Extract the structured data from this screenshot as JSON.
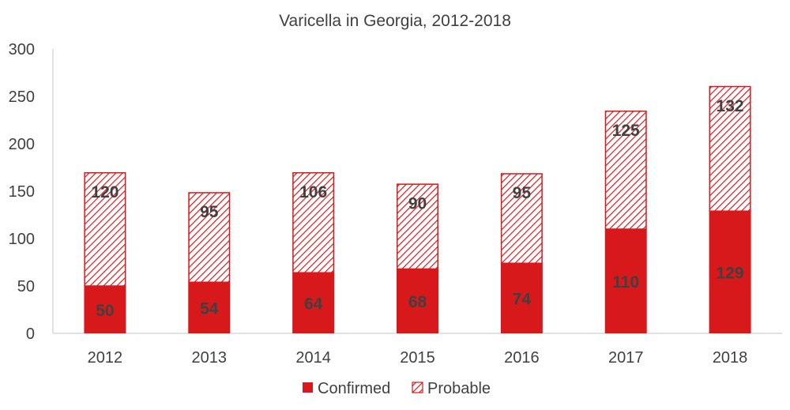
{
  "chart_data": {
    "type": "bar",
    "stacked": true,
    "title": "Varicella in Georgia, 2012-2018",
    "categories": [
      "2012",
      "2013",
      "2014",
      "2015",
      "2016",
      "2017",
      "2018"
    ],
    "series": [
      {
        "name": "Confirmed",
        "values": [
          50,
          54,
          64,
          68,
          74,
          110,
          129
        ],
        "color": "#d7191c",
        "fill": "solid"
      },
      {
        "name": "Probable",
        "values": [
          120,
          95,
          106,
          90,
          95,
          125,
          132
        ],
        "color": "#d7191c",
        "fill": "hatched"
      }
    ],
    "ylim": [
      0,
      300
    ],
    "yticks": [
      "0",
      "50",
      "100",
      "150",
      "200",
      "250",
      "300"
    ],
    "grid": false,
    "legend_position": "bottom"
  }
}
